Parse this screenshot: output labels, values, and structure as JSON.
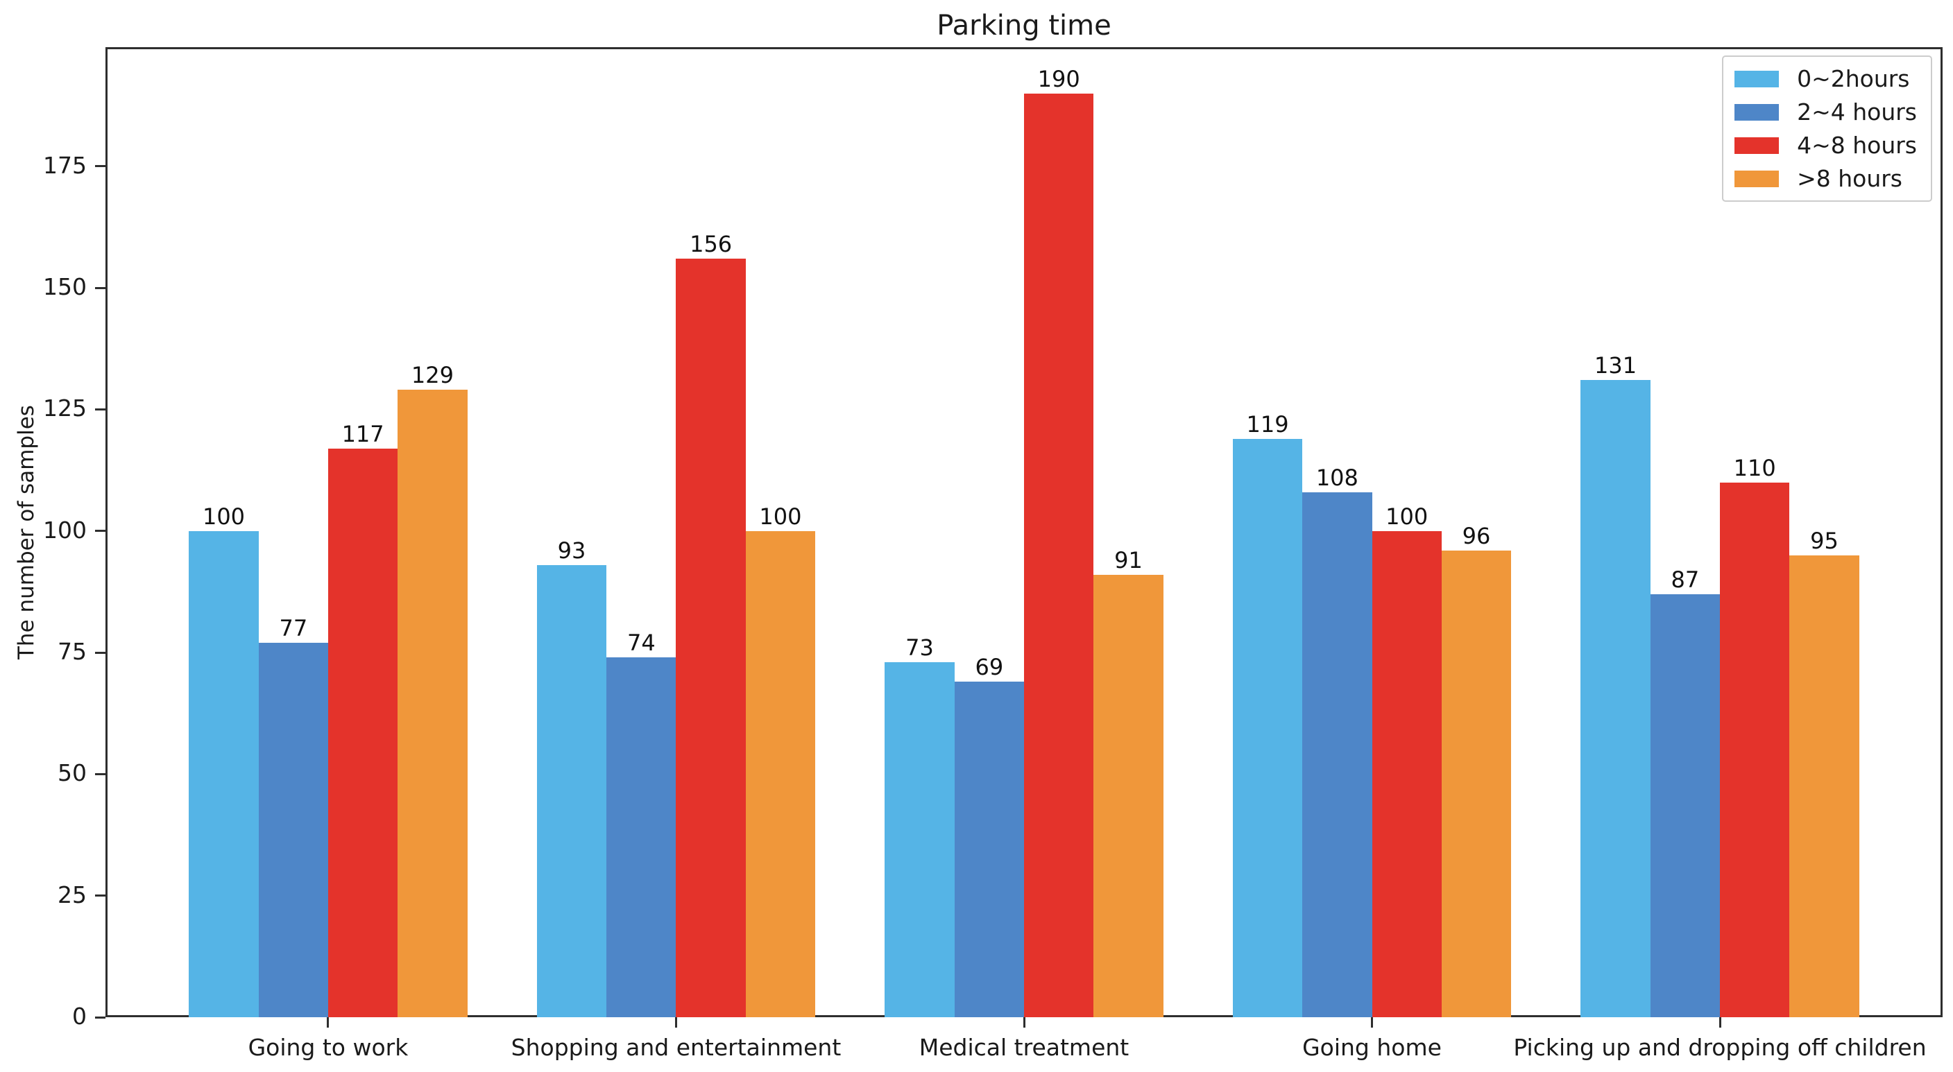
{
  "chart_data": {
    "type": "bar",
    "title": "Parking time",
    "xlabel": "",
    "ylabel": "The number of samples",
    "categories": [
      "Going to work",
      "Shopping and entertainment",
      "Medical treatment",
      "Going home",
      "Picking up and dropping off children"
    ],
    "series": [
      {
        "name": "0~2hours",
        "color": "#55B4E6",
        "values": [
          100,
          93,
          73,
          119,
          131
        ]
      },
      {
        "name": "2~4 hours",
        "color": "#4E86C8",
        "values": [
          77,
          74,
          69,
          108,
          87
        ]
      },
      {
        "name": "4~8 hours",
        "color": "#E4332B",
        "values": [
          117,
          156,
          190,
          100,
          110
        ]
      },
      {
        "name": ">8 hours",
        "color": "#F0973A",
        "values": [
          129,
          100,
          91,
          96,
          95
        ]
      }
    ],
    "yticks": [
      0,
      25,
      50,
      75,
      100,
      125,
      150,
      175
    ],
    "ylim": [
      0,
      199.5
    ],
    "grid": false,
    "legend_position": "upper right",
    "bar_value_labels": true,
    "axis_color": "#2e2e2e",
    "background_color": "#ffffff"
  }
}
